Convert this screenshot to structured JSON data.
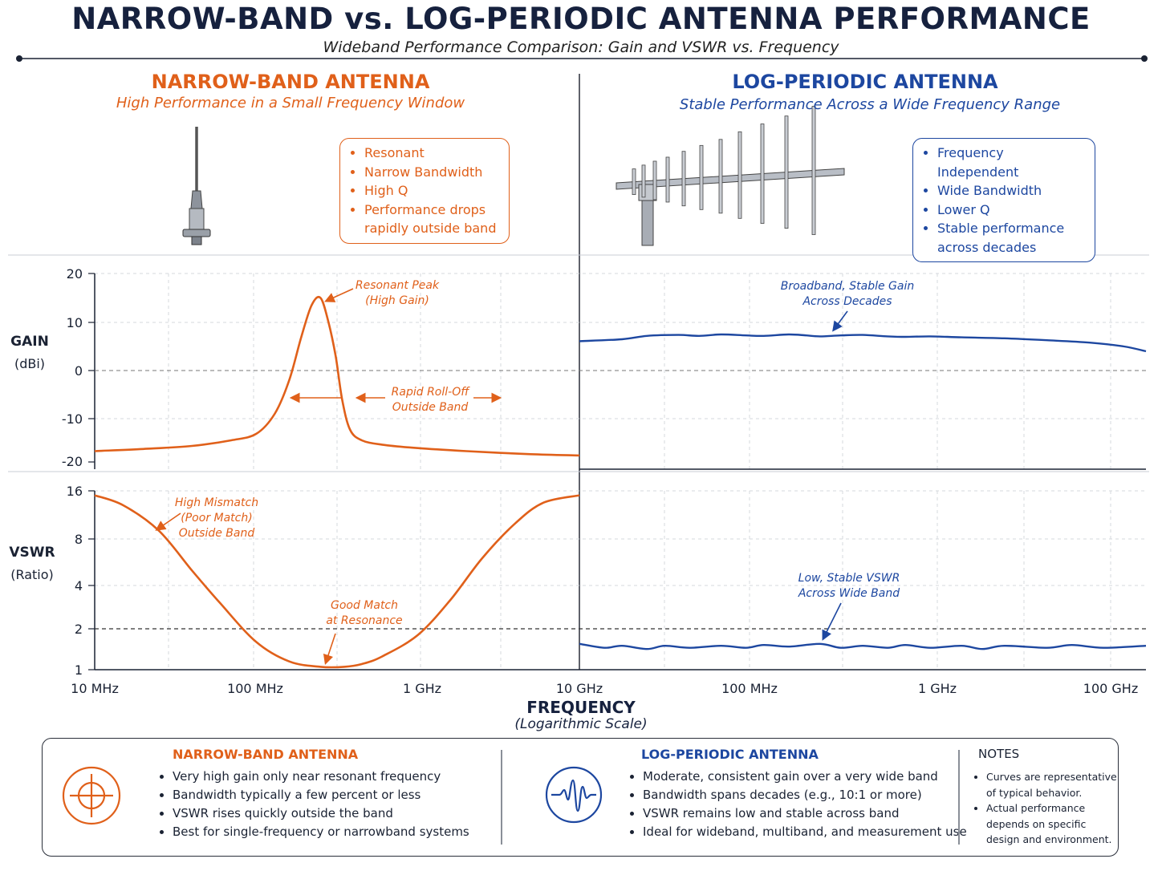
{
  "title": "NARROW-BAND vs. LOG-PERIODIC ANTENNA PERFORMANCE",
  "subtitle": "Wideband Performance Comparison: Gain and VSWR vs. Frequency",
  "colors": {
    "narrowband": "#e0601a",
    "log_periodic": "#1d47a0",
    "text": "#16213e"
  },
  "narrowband": {
    "heading": "NARROW-BAND ANTENNA",
    "subheading": "High Performance in a Small Frequency Window",
    "features": [
      "Resonant",
      "Narrow Bandwidth",
      "High Q",
      "Performance drops rapidly outside band"
    ]
  },
  "log_periodic": {
    "heading": "LOG-PERIODIC ANTENNA",
    "subheading": "Stable Performance Across a Wide Frequency Range",
    "features": [
      "Frequency Independent",
      "Wide Bandwidth",
      "Lower Q",
      "Stable performance across decades"
    ]
  },
  "axes": {
    "gain_label": "GAIN",
    "gain_unit": "(dBi)",
    "vswr_label": "VSWR",
    "vswr_unit": "(Ratio)",
    "x_label": "FREQUENCY",
    "x_unit": "(Logarithmic Scale)"
  },
  "chart_data": [
    {
      "type": "line",
      "panel": "narrowband-gain",
      "xscale": "log",
      "xlim": [
        10,
        10000
      ],
      "ylim": [
        -20,
        20
      ],
      "yticks": [
        20,
        10,
        0,
        -10,
        -20
      ],
      "x": [
        10,
        20,
        40,
        70,
        100,
        130,
        160,
        190,
        220,
        250,
        280,
        310,
        340,
        380,
        450,
        600,
        1000,
        2000,
        5000,
        10000
      ],
      "series": [
        {
          "values": [
            -17.5,
            -17,
            -16.3,
            -15,
            -13.5,
            -9,
            -2,
            7,
            13.5,
            15,
            10,
            3,
            -6,
            -12.5,
            -15,
            -16,
            -16.8,
            -17.5,
            -18.2,
            -18.5
          ]
        }
      ],
      "annotations": [
        "Resonant Peak",
        "(High Gain)",
        "Rapid Roll-Off",
        "Outside Band"
      ]
    },
    {
      "type": "line",
      "panel": "logperiodic-gain",
      "xscale": "log",
      "xlim": [
        10,
        100000
      ],
      "ylim": [
        -20,
        20
      ],
      "x": [
        10,
        20,
        30,
        50,
        70,
        100,
        150,
        200,
        300,
        400,
        500,
        700,
        1000,
        1500,
        2000,
        3000,
        5000,
        10000,
        20000,
        40000,
        70000,
        100000
      ],
      "series": [
        {
          "values": [
            6.1,
            6.5,
            7.2,
            7.4,
            7.2,
            7.5,
            7.3,
            7.2,
            7.5,
            7.3,
            7.1,
            7.3,
            7.4,
            7.1,
            7.0,
            7.1,
            6.9,
            6.7,
            6.3,
            5.8,
            5.0,
            4.0
          ]
        }
      ],
      "annotations": [
        "Broadband, Stable Gain",
        "Across Decades"
      ]
    },
    {
      "type": "line",
      "panel": "narrowband-vswr",
      "xscale": "log",
      "yscale": "log",
      "xlim": [
        10,
        10000
      ],
      "yticks": [
        16,
        8,
        4,
        2,
        1
      ],
      "x": [
        10,
        15,
        25,
        40,
        60,
        100,
        160,
        250,
        350,
        450,
        600,
        1000,
        1600,
        2500,
        4000,
        6000,
        10000
      ],
      "series": [
        {
          "values": [
            15,
            13,
            9,
            5,
            3,
            1.6,
            1.15,
            1.05,
            1.05,
            1.1,
            1.25,
            1.8,
            3.2,
            6,
            10,
            13.5,
            15
          ]
        }
      ],
      "reference_line": 2,
      "annotations": [
        "High Mismatch",
        "(Poor Match)",
        "Outside Band",
        "Good Match",
        "at Resonance"
      ]
    },
    {
      "type": "line",
      "panel": "logperiodic-vswr",
      "xscale": "log",
      "yscale": "log",
      "xlim": [
        10,
        100000
      ],
      "x": [
        10,
        15,
        20,
        30,
        40,
        60,
        100,
        150,
        200,
        300,
        500,
        700,
        1000,
        1500,
        2000,
        3000,
        5000,
        7000,
        10000,
        20000,
        30000,
        50000,
        100000
      ],
      "series": [
        {
          "values": [
            1.55,
            1.45,
            1.5,
            1.42,
            1.5,
            1.45,
            1.5,
            1.45,
            1.52,
            1.48,
            1.55,
            1.45,
            1.5,
            1.45,
            1.52,
            1.45,
            1.5,
            1.42,
            1.5,
            1.45,
            1.52,
            1.45,
            1.5
          ]
        }
      ],
      "reference_line": 2,
      "annotations": [
        "Low, Stable VSWR",
        "Across Wide Band"
      ]
    }
  ],
  "x_ticks_left": [
    "10 MHz",
    "100 MHz",
    "1 GHz",
    "10 GHz"
  ],
  "x_ticks_right": [
    "100 MHz",
    "1 GHz",
    "100 GHz"
  ],
  "summary": {
    "narrowband": {
      "heading": "NARROW-BAND ANTENNA",
      "items": [
        "Very high gain only near resonant frequency",
        "Bandwidth typically a few percent or less",
        "VSWR rises quickly outside the band",
        "Best for single-frequency or narrowband systems"
      ]
    },
    "log_periodic": {
      "heading": "LOG-PERIODIC ANTENNA",
      "items": [
        "Moderate, consistent gain over a very wide band",
        "Bandwidth spans decades (e.g., 10:1 or more)",
        "VSWR remains low and stable across band",
        "Ideal for wideband, multiband, and measurement use"
      ]
    },
    "notes": {
      "heading": "NOTES",
      "items": [
        "Curves are representative of typical behavior.",
        "Actual performance depends on specific design and environment."
      ]
    }
  }
}
